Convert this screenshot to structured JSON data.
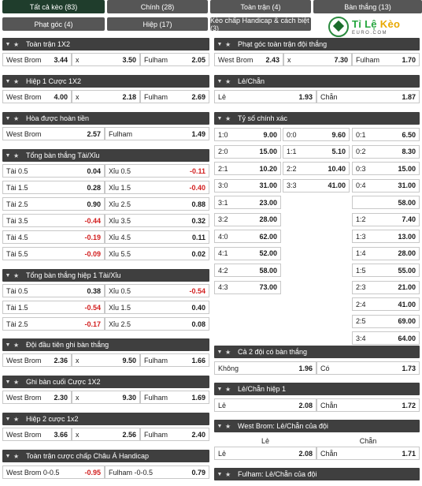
{
  "tabs": [
    {
      "label": "Tất cả kèo (83)"
    },
    {
      "label": "Chính (28)"
    },
    {
      "label": "Toàn trận (4)"
    },
    {
      "label": "Bàn thắng (13)"
    },
    {
      "label": "Phạt góc (4)"
    },
    {
      "label": "Hiệp (17)"
    },
    {
      "label": "Kèo chấp Handicap & cách biệt (3)"
    }
  ],
  "logo": {
    "main_a": "Tỉ Lệ ",
    "main_b": "Kèo",
    "sub": "EURO.COM"
  },
  "left": {
    "s1": {
      "title": "Toàn trận 1X2",
      "row": [
        "West Brom",
        "3.44",
        "x",
        "3.50",
        "Fulham",
        "2.05"
      ]
    },
    "s2": {
      "title": "Hiệp 1 Cược 1X2",
      "row": [
        "West Brom",
        "4.00",
        "x",
        "2.18",
        "Fulham",
        "2.69"
      ]
    },
    "s3": {
      "title": "Hòa được hoàn tiền",
      "row": [
        "West Brom",
        "2.57",
        "Fulham",
        "1.49"
      ]
    },
    "s4": {
      "title": "Tổng bàn thắng Tài/Xỉu",
      "rows": [
        [
          "Tài 0.5",
          "0.04",
          "Xỉu 0.5",
          "-0.11"
        ],
        [
          "Tài 1.5",
          "0.28",
          "Xỉu 1.5",
          "-0.40"
        ],
        [
          "Tài 2.5",
          "0.90",
          "Xỉu 2.5",
          "0.88"
        ],
        [
          "Tài 3.5",
          "-0.44",
          "Xỉu 3.5",
          "0.32"
        ],
        [
          "Tài 4.5",
          "-0.19",
          "Xỉu 4.5",
          "0.11"
        ],
        [
          "Tài 5.5",
          "-0.09",
          "Xỉu 5.5",
          "0.02"
        ]
      ]
    },
    "s5": {
      "title": "Tổng bàn thắng hiệp 1 Tài/Xỉu",
      "rows": [
        [
          "Tài 0.5",
          "0.38",
          "Xỉu 0.5",
          "-0.54"
        ],
        [
          "Tài 1.5",
          "-0.54",
          "Xỉu 1.5",
          "0.40"
        ],
        [
          "Tài 2.5",
          "-0.17",
          "Xỉu 2.5",
          "0.08"
        ]
      ]
    },
    "s6": {
      "title": "Đội đầu tiên ghi bàn thắng",
      "row": [
        "West Brom",
        "2.36",
        "x",
        "9.50",
        "Fulham",
        "1.66"
      ]
    },
    "s7": {
      "title": "Ghi bàn cuối Cược 1X2",
      "row": [
        "West Brom",
        "2.30",
        "x",
        "9.30",
        "Fulham",
        "1.69"
      ]
    },
    "s8": {
      "title": "Hiệp 2 cược 1x2",
      "row": [
        "West Brom",
        "3.66",
        "x",
        "2.56",
        "Fulham",
        "2.40"
      ]
    },
    "s9": {
      "title": "Toàn trận cược chấp Châu Á Handicap",
      "row": [
        "West Brom 0-0.5",
        "-0.95",
        "Fulham -0-0.5",
        "0.79"
      ]
    }
  },
  "right": {
    "r1": {
      "title": "Phạt góc toàn trận đội thắng",
      "row": [
        "West Brom",
        "2.43",
        "x",
        "7.30",
        "Fulham",
        "1.70"
      ]
    },
    "r2": {
      "title": "Lẻ/Chẵn",
      "row": [
        "Lẻ",
        "1.93",
        "Chẵn",
        "1.87"
      ]
    },
    "r3": {
      "title": "Tỷ số chính xác",
      "col1": [
        [
          "1:0",
          "9.00"
        ],
        [
          "2:0",
          "15.00"
        ],
        [
          "2:1",
          "10.20"
        ],
        [
          "3:0",
          "31.00"
        ],
        [
          "3:1",
          "23.00"
        ],
        [
          "3:2",
          "28.00"
        ],
        [
          "4:0",
          "62.00"
        ],
        [
          "4:1",
          "52.00"
        ],
        [
          "4:2",
          "58.00"
        ],
        [
          "4:3",
          "73.00"
        ]
      ],
      "col2": [
        [
          "0:0",
          "9.60"
        ],
        [
          "1:1",
          "5.10"
        ],
        [
          "2:2",
          "10.40"
        ],
        [
          "3:3",
          "41.00"
        ]
      ],
      "col3": [
        [
          "0:1",
          "6.50"
        ],
        [
          "0:2",
          "8.30"
        ],
        [
          "0:3",
          "15.00"
        ],
        [
          "0:4",
          "31.00"
        ],
        [
          "1:2",
          "7.40"
        ],
        [
          "1:3",
          "13.00"
        ],
        [
          "1:4",
          "28.00"
        ],
        [
          "1:5",
          "55.00"
        ],
        [
          "2:3",
          "21.00"
        ],
        [
          "2:4",
          "41.00"
        ],
        [
          "2:5",
          "69.00"
        ],
        [
          "3:4",
          "64.00"
        ]
      ],
      "col3b": [
        "58.00"
      ]
    },
    "r4": {
      "title": "Cả 2 đội có bàn thắng",
      "row": [
        "Không",
        "1.96",
        "Có",
        "1.73"
      ]
    },
    "r5": {
      "title": "Lẻ/Chẵn hiệp 1",
      "row": [
        "Lẻ",
        "2.08",
        "Chẵn",
        "1.72"
      ]
    },
    "r6": {
      "title": "West Brom: Lẻ/Chẵn của đội",
      "head": [
        "Lẻ",
        "Chẵn"
      ],
      "row": [
        "Lẻ",
        "2.08",
        "Chẵn",
        "1.71"
      ]
    },
    "r7": {
      "title": "Fulham: Lẻ/Chẵn của đội"
    }
  }
}
